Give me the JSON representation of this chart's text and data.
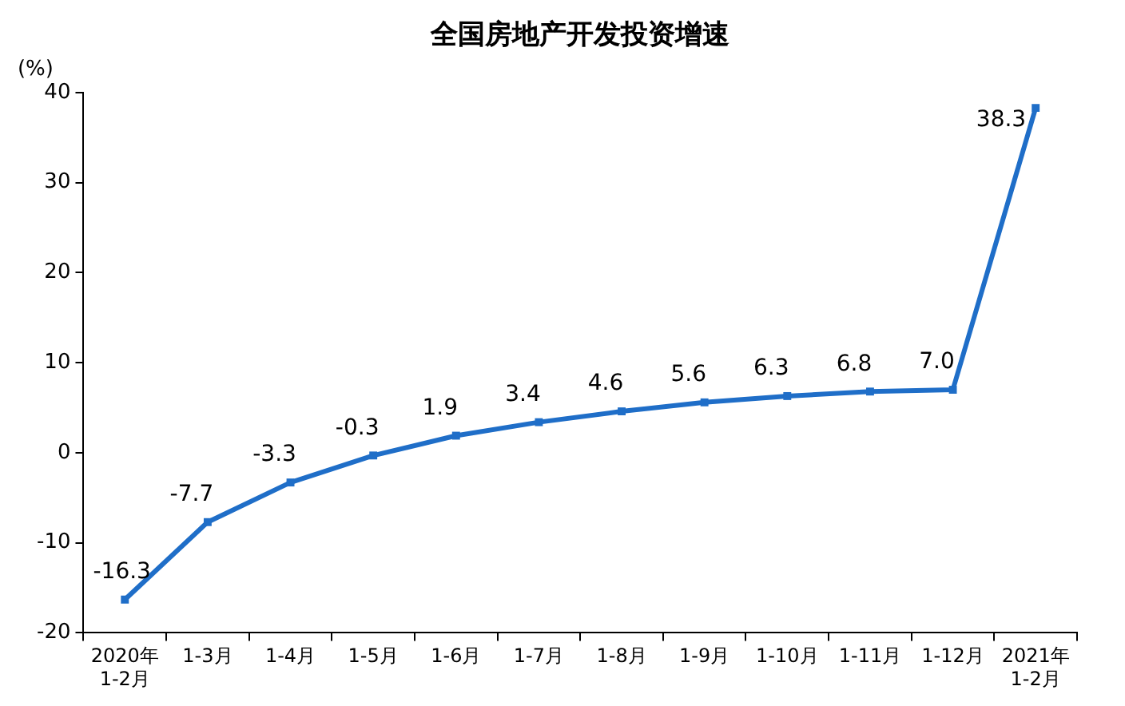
{
  "chart_data": {
    "type": "line",
    "title": "全国房地产开发投资增速",
    "ylabel": "(%)",
    "categories": [
      "2020年\n1-2月",
      "1-3月",
      "1-4月",
      "1-5月",
      "1-6月",
      "1-7月",
      "1-8月",
      "1-9月",
      "1-10月",
      "1-11月",
      "1-12月",
      "2021年\n1-2月"
    ],
    "series": [
      {
        "color": "#1f6ec8",
        "values": [
          -16.3,
          -7.7,
          -3.3,
          -0.3,
          1.9,
          3.4,
          4.6,
          5.6,
          6.3,
          6.8,
          7.0,
          38.3
        ],
        "value_labels": [
          "-16.3",
          "-7.7",
          "-3.3",
          "-0.3",
          "1.9",
          "3.4",
          "4.6",
          "5.6",
          "6.3",
          "6.8",
          "7.0",
          "38.3"
        ]
      }
    ],
    "ylim": [
      -20,
      40
    ],
    "yticks": [
      -20,
      -10,
      0,
      10,
      20,
      30,
      40
    ],
    "grid": false,
    "legend": false,
    "marker": "square",
    "line_style": "solid"
  }
}
